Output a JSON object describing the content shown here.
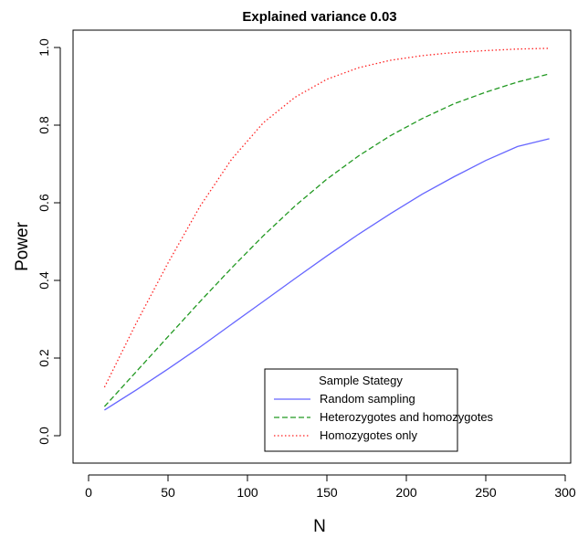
{
  "chart_data": {
    "type": "line",
    "title": "Explained variance 0.03",
    "xlabel": "N",
    "ylabel": "Power",
    "xlim": [
      0,
      300
    ],
    "ylim": [
      0.0,
      1.0
    ],
    "x_ticks": [
      0,
      50,
      100,
      150,
      200,
      250,
      300
    ],
    "y_ticks": [
      0.0,
      0.2,
      0.4,
      0.6,
      0.8,
      1.0
    ],
    "x_tick_labels": [
      "0",
      "50",
      "100",
      "150",
      "200",
      "250",
      "300"
    ],
    "y_tick_labels": [
      "0.0",
      "0.2",
      "0.4",
      "0.6",
      "0.8",
      "1.0"
    ],
    "grid": false,
    "legend": {
      "title": "Sample Stategy",
      "position": "bottom-right"
    },
    "x": [
      10,
      30,
      50,
      70,
      90,
      110,
      130,
      150,
      170,
      190,
      210,
      230,
      250,
      270,
      290
    ],
    "series": [
      {
        "name": "Random sampling",
        "color": "#6666ff",
        "dash": "solid",
        "values": [
          0.066,
          0.118,
          0.172,
          0.228,
          0.287,
          0.346,
          0.405,
          0.463,
          0.519,
          0.572,
          0.622,
          0.667,
          0.709,
          0.745,
          0.765
        ]
      },
      {
        "name": "Heterozygotes and homozygotes",
        "color": "#229922",
        "dash": "dashed",
        "values": [
          0.075,
          0.165,
          0.255,
          0.345,
          0.432,
          0.515,
          0.592,
          0.661,
          0.721,
          0.773,
          0.817,
          0.855,
          0.885,
          0.911,
          0.932
        ]
      },
      {
        "name": "Homozygotes only",
        "color": "#ff2222",
        "dash": "dotted",
        "values": [
          0.125,
          0.29,
          0.445,
          0.59,
          0.712,
          0.806,
          0.872,
          0.918,
          0.948,
          0.967,
          0.979,
          0.987,
          0.992,
          0.996,
          0.998
        ]
      }
    ]
  }
}
